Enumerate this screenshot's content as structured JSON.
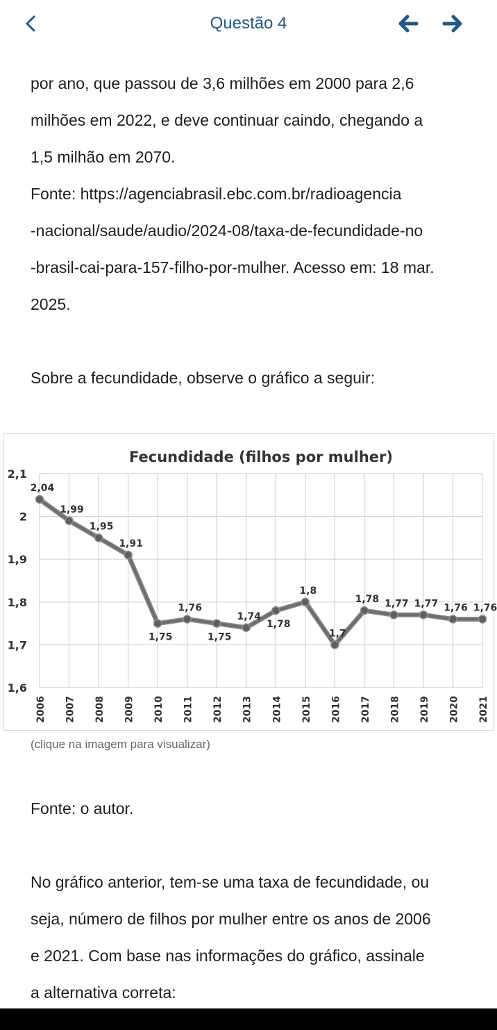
{
  "header": {
    "title": "Questão 4"
  },
  "intro_lines": [
    "por ano, que passou de 3,6 milhões em 2000 para 2,6",
    "milhões em 2022, e deve continuar caindo, chegando a",
    "1,5 milhão em 2070.",
    "Fonte: https://agenciabrasil.ebc.com.br/radioagencia",
    "-nacional/saude/audio/2024-08/taxa-de-fecundidade-no",
    "-brasil-cai-para-157-filho-por-mulher. Acesso em: 18 mar.",
    "2025."
  ],
  "prompt": "Sobre a fecundidade, observe o gráfico a seguir:",
  "chart_data": {
    "type": "line",
    "title": "Fecundidade (filhos por mulher)",
    "x": [
      "2006",
      "2007",
      "2008",
      "2009",
      "2010",
      "2011",
      "2012",
      "2013",
      "2014",
      "2015",
      "2016",
      "2017",
      "2018",
      "2019",
      "2020",
      "2021"
    ],
    "values": [
      2.04,
      1.99,
      1.95,
      1.91,
      1.75,
      1.76,
      1.75,
      1.74,
      1.78,
      1.8,
      1.7,
      1.78,
      1.77,
      1.77,
      1.76,
      1.76
    ],
    "labels": [
      "2,04",
      "1,99",
      "1,95",
      "1,91",
      "1,75",
      "1,76",
      "1,75",
      "1,74",
      "1,78",
      "1,8",
      "1,7",
      "1,78",
      "1,77",
      "1,77",
      "1,76",
      "1,76"
    ],
    "ylim": [
      1.6,
      2.1
    ],
    "yticks": [
      1.6,
      1.7,
      1.8,
      1.9,
      2.0,
      2.1
    ],
    "ytick_labels": [
      "1,6",
      "1,7",
      "1,8",
      "1,9",
      "2",
      "2,1"
    ],
    "xlabel": "",
    "ylabel": "",
    "grid": true,
    "line_color": "#6e6e6e"
  },
  "chart_caption": "(clique na imagem para visualizar)",
  "source": "Fonte: o autor.",
  "question_lines": [
    "No gráfico anterior, tem-se uma taxa de fecundidade, ou",
    "seja, número de filhos por mulher entre os anos de 2006",
    "e 2021. Com base nas informações do gráfico, assinale",
    "a alternativa correta:"
  ],
  "colors": {
    "accent": "#1e5a8a",
    "text": "#1e1e1e"
  }
}
